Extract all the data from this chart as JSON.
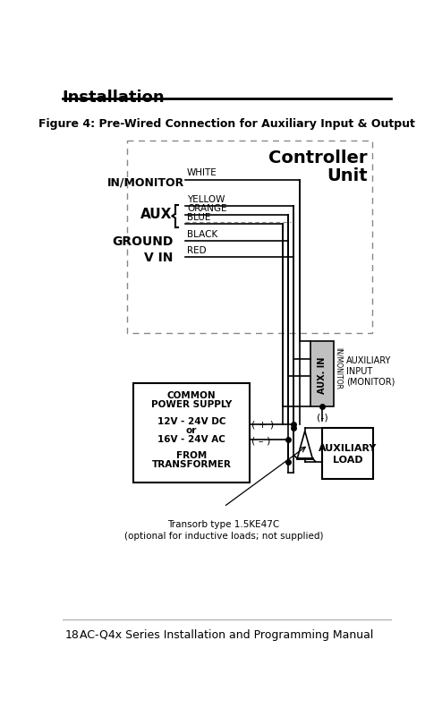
{
  "title": "Installation",
  "figure_title": "Figure 4: Pre-Wired Connection for Auxiliary Input & Output",
  "footer_page": "18",
  "footer_text": "AC-Q4x Series Installation and Programming Manual",
  "bg_color": "#ffffff",
  "controller_label": "Controller\nUnit",
  "transorb_text": "Transorb type 1.5KE47C\n(optional for inductive loads; not supplied)",
  "plus_text": "( + )",
  "minus_text": "( – )",
  "minus2_text": "(-)",
  "ps_lines": [
    "COMMON",
    "POWER SUPPLY",
    "12V - 24V DC",
    "or",
    "16V - 24V AC",
    "FROM",
    "TRANSFORMER"
  ],
  "aux_input_label": "AUXILIARY\nINPUT\n(MONITOR)",
  "aux_load_label": "AUXILIARY\nLOAD",
  "aux_in_text": "AUX. IN",
  "in_monitor_rot": "IN/MONITOR"
}
